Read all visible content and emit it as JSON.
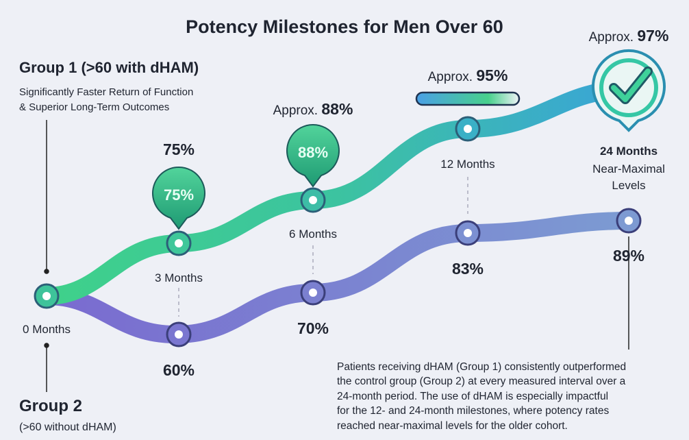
{
  "title": "Potency Milestones for Men Over 60",
  "group1": {
    "name": "Group 1 (>60 with dHAM)",
    "description": [
      "Significantly Faster Return of Function",
      "& Superior Long-Term Outcomes"
    ]
  },
  "group2": {
    "name": "Group 2",
    "description": "(>60 without dHAM)"
  },
  "milestones": [
    {
      "label": "0 Months"
    },
    {
      "label": "3 Months",
      "group1_callout": "75%",
      "group1_badge": "75%",
      "group2": "60%"
    },
    {
      "label": "6 Months",
      "group1_callout": {
        "prefix": "Approx.",
        "value": "88%"
      },
      "group1_badge": "88%",
      "group2": "70%"
    },
    {
      "label": "12 Months",
      "group1_callout": {
        "prefix": "Approx.",
        "value": "95%"
      },
      "group2": "83%"
    },
    {
      "label": "24 Months",
      "note": [
        "Near-Maximal",
        "Levels"
      ],
      "group1_callout": {
        "prefix": "Approx.",
        "value": "97%"
      },
      "group2": "89%"
    }
  ],
  "summary": [
    "Patients receiving dHAM (Group 1) consistently outperformed",
    "the control group (Group 2) at every measured interval over a",
    "24-month period. The use of dHAM is especially impactful",
    "for the 12- and 24-month milestones, where potency rates",
    "reached near-maximal levels for the older cohort."
  ]
}
